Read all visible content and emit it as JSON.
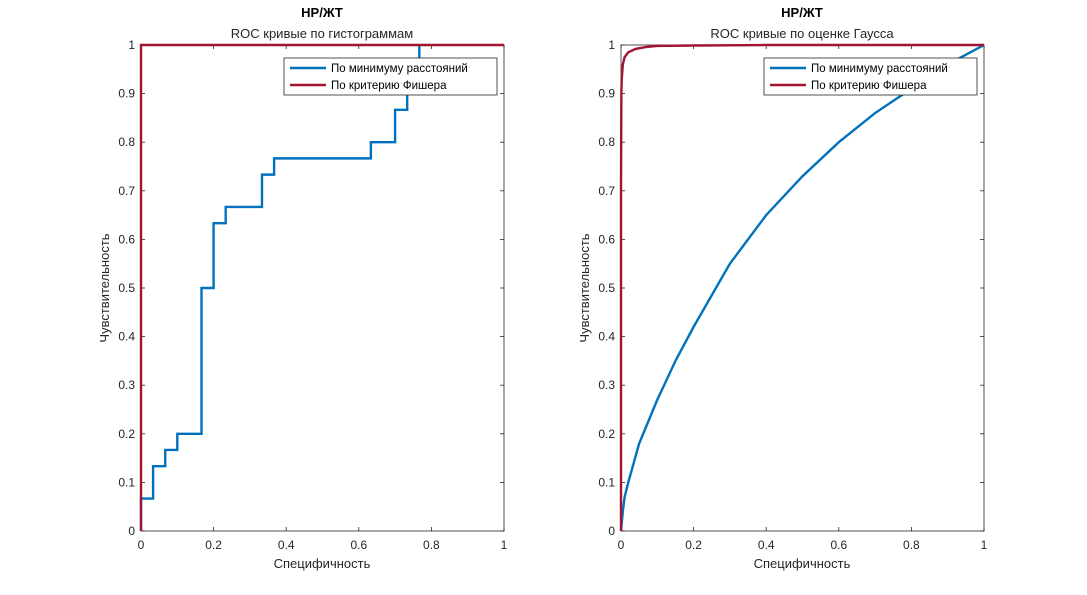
{
  "chart_data": [
    {
      "type": "line",
      "title": "НР/ЖТ",
      "subtitle": "ROC кривые по гистограммам",
      "xlabel": "Специфичность",
      "ylabel": "Чувствительность",
      "xlim": [
        0,
        1
      ],
      "ylim": [
        0,
        1
      ],
      "xticks": [
        "0",
        "0.2",
        "0.4",
        "0.6",
        "0.8",
        "1"
      ],
      "yticks": [
        "0",
        "0.1",
        "0.2",
        "0.3",
        "0.4",
        "0.5",
        "0.6",
        "0.7",
        "0.8",
        "0.9",
        "1"
      ],
      "grid": false,
      "legend_position": "top-right",
      "series": [
        {
          "name": "По минимуму расстояний",
          "color": "#0072BD",
          "step": true,
          "x": [
            0,
            0,
            0.0333,
            0.0333,
            0.0667,
            0.0667,
            0.1,
            0.1,
            0.1667,
            0.1667,
            0.2,
            0.2,
            0.2333,
            0.2333,
            0.3333,
            0.3333,
            0.3667,
            0.3667,
            0.6333,
            0.6333,
            0.7,
            0.7,
            0.7333,
            0.7333,
            0.7667,
            0.7667
          ],
          "y": [
            0,
            0.0667,
            0.0667,
            0.1333,
            0.1333,
            0.1667,
            0.1667,
            0.2,
            0.2,
            0.5,
            0.5,
            0.6333,
            0.6333,
            0.6667,
            0.6667,
            0.7333,
            0.7333,
            0.7667,
            0.7667,
            0.8,
            0.8,
            0.8667,
            0.8667,
            0.9,
            0.9,
            1.0
          ]
        },
        {
          "name": "По критерию Фишера",
          "color": "#A2142F",
          "step": false,
          "x": [
            0,
            0,
            1
          ],
          "y": [
            0,
            1,
            1
          ]
        }
      ]
    },
    {
      "type": "line",
      "title": "НР/ЖТ",
      "subtitle": "ROC кривые по оценке Гаусса",
      "xlabel": "Специфичность",
      "ylabel": "Чувствительность",
      "xlim": [
        0,
        1
      ],
      "ylim": [
        0,
        1
      ],
      "xticks": [
        "0",
        "0.2",
        "0.4",
        "0.6",
        "0.8",
        "1"
      ],
      "yticks": [
        "0",
        "0.1",
        "0.2",
        "0.3",
        "0.4",
        "0.5",
        "0.6",
        "0.7",
        "0.8",
        "0.9",
        "1"
      ],
      "grid": false,
      "legend_position": "top-right",
      "series": [
        {
          "name": "По минимуму расстояний",
          "color": "#0072BD",
          "step": false,
          "x": [
            0,
            0.005,
            0.01,
            0.02,
            0.05,
            0.1,
            0.15,
            0.2,
            0.3,
            0.4,
            0.5,
            0.6,
            0.7,
            0.8,
            0.9,
            1.0
          ],
          "y": [
            0,
            0.04,
            0.07,
            0.1,
            0.18,
            0.27,
            0.35,
            0.42,
            0.55,
            0.65,
            0.73,
            0.8,
            0.86,
            0.91,
            0.96,
            1.0
          ]
        },
        {
          "name": "По критерию Фишера",
          "color": "#A2142F",
          "step": false,
          "x": [
            0,
            0,
            0.001,
            0.002,
            0.005,
            0.01,
            0.02,
            0.04,
            0.07,
            0.1,
            0.2,
            0.4,
            1.0
          ],
          "y": [
            0,
            0.7,
            0.9,
            0.93,
            0.96,
            0.975,
            0.985,
            0.992,
            0.996,
            0.998,
            0.999,
            1.0,
            1.0
          ]
        }
      ]
    }
  ]
}
